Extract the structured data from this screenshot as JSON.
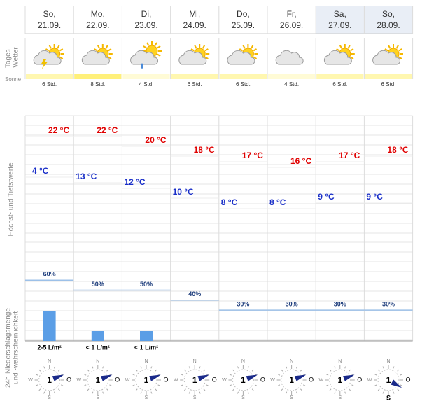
{
  "labels": {
    "weather": [
      "Tages-",
      "Wetter"
    ],
    "sun": "Sonne",
    "temp": "Höchst- und Tiefstwerte",
    "rain": [
      "24h-Niederschlagsmenge",
      "und -wahrscheinlichkeit"
    ]
  },
  "compass": {
    "n": "N",
    "e": "O",
    "s": "S",
    "w": "W"
  },
  "days": [
    {
      "day": "So,",
      "date": "21.09.",
      "sun": "6 Std.",
      "high": "22 °C",
      "low": "4 °C",
      "rain_amount": "2-5 L/m²",
      "rain_prob": "60%",
      "wind": "1"
    },
    {
      "day": "Mo,",
      "date": "22.09.",
      "sun": "8 Std.",
      "high": "22 °C",
      "low": "13 °C",
      "rain_amount": "< 1 L/m²",
      "rain_prob": "50%",
      "wind": "1"
    },
    {
      "day": "Di,",
      "date": "23.09.",
      "sun": "4 Std.",
      "high": "20 °C",
      "low": "12 °C",
      "rain_amount": "< 1 L/m²",
      "rain_prob": "50%",
      "wind": "1"
    },
    {
      "day": "Mi,",
      "date": "24.09.",
      "sun": "6 Std.",
      "high": "18 °C",
      "low": "10 °C",
      "rain_prob": "40%",
      "wind": "1"
    },
    {
      "day": "Do,",
      "date": "25.09.",
      "sun": "6 Std.",
      "high": "17 °C",
      "low": "8 °C",
      "rain_prob": "30%",
      "wind": "1"
    },
    {
      "day": "Fr,",
      "date": "26.09.",
      "sun": "4 Std.",
      "high": "16 °C",
      "low": "8 °C",
      "rain_prob": "30%",
      "wind": "1"
    },
    {
      "day": "Sa,",
      "date": "27.09.",
      "sun": "6 Std.",
      "high": "17 °C",
      "low": "9 °C",
      "rain_prob": "30%",
      "wind": "1"
    },
    {
      "day": "So,",
      "date": "28.09.",
      "sun": "6 Std.",
      "high": "18 °C",
      "low": "9 °C",
      "rain_prob": "30%",
      "wind": "1"
    }
  ]
}
